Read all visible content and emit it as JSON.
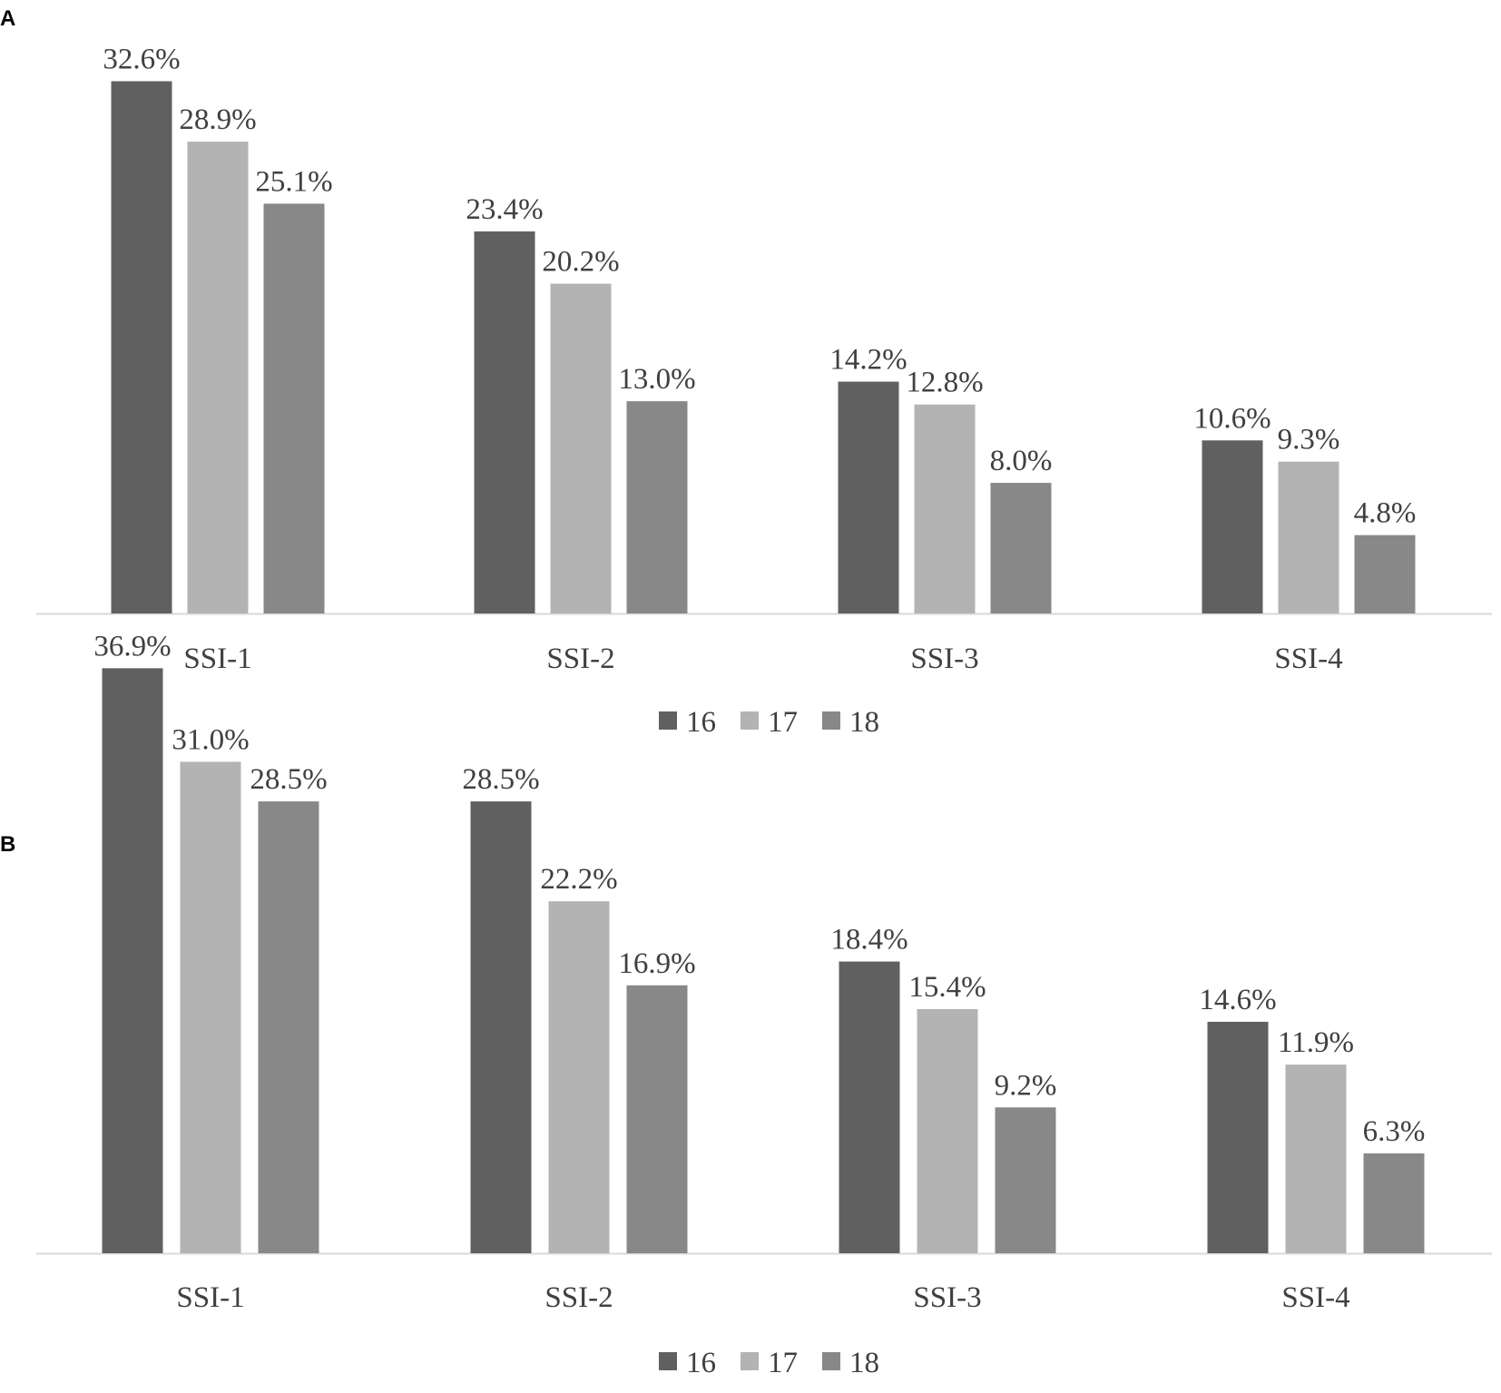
{
  "chart_data": [
    {
      "type": "bar",
      "panel": "A",
      "categories": [
        "SSI-1",
        "SSI-2",
        "SSI-3",
        "SSI-4"
      ],
      "series": [
        {
          "name": "16",
          "color": "#606060",
          "values": [
            32.6,
            23.4,
            14.2,
            10.6
          ],
          "labels": [
            "32.6%",
            "23.4%",
            "14.2%",
            "10.6%"
          ]
        },
        {
          "name": "17",
          "color": "#b3b3b3",
          "values": [
            28.9,
            20.2,
            12.8,
            9.3
          ],
          "labels": [
            "28.9%",
            "20.2%",
            "12.8%",
            "9.3%"
          ]
        },
        {
          "name": "18",
          "color": "#888888",
          "values": [
            25.1,
            13.0,
            8.0,
            4.8
          ],
          "labels": [
            "25.1%",
            "13.0%",
            "8.0%",
            "4.8%"
          ]
        }
      ],
      "legend_position": "bottom",
      "grid": false
    },
    {
      "type": "bar",
      "panel": "B",
      "categories": [
        "SSI-1",
        "SSI-2",
        "SSI-3",
        "SSI-4"
      ],
      "series": [
        {
          "name": "16",
          "color": "#606060",
          "values": [
            36.9,
            28.5,
            18.4,
            14.6
          ],
          "labels": [
            "36.9%",
            "28.5%",
            "18.4%",
            "14.6%"
          ]
        },
        {
          "name": "17",
          "color": "#b3b3b3",
          "values": [
            31.0,
            22.2,
            15.4,
            11.9
          ],
          "labels": [
            "31.0%",
            "22.2%",
            "15.4%",
            "11.9%"
          ]
        },
        {
          "name": "18",
          "color": "#888888",
          "values": [
            28.5,
            16.9,
            9.2,
            6.3
          ],
          "labels": [
            "28.5%",
            "16.9%",
            "9.2%",
            "6.3%"
          ]
        }
      ],
      "legend_position": "bottom",
      "grid": false
    }
  ]
}
